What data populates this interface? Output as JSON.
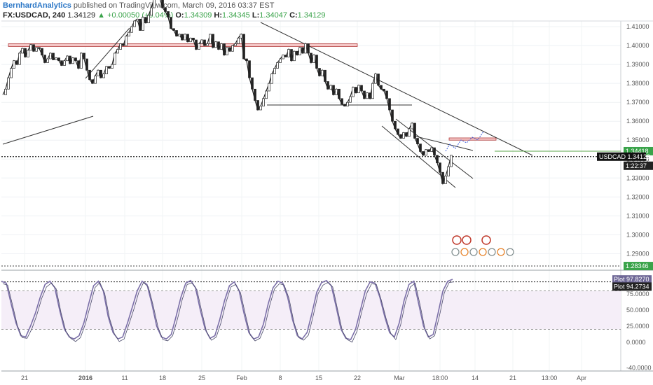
{
  "header": {
    "author": "BernhardAnalytics",
    "published": "published on TradingView.com, March 09, 2016 03:37 EST",
    "symbol": "FX:USDCAD, 240",
    "last": "1.34129",
    "change": "+0.00050 (+0.04%)",
    "o_label": "O:",
    "o_value": "1.34309",
    "h_label": "H:",
    "h_value": "1.34345",
    "l_label": "L:",
    "l_value": "1.34047",
    "c_label": "C:",
    "c_value": "1.34129"
  },
  "colors": {
    "up": "#3aa34a",
    "candle": "#222222",
    "resistance_zone": "#f4c6c6",
    "projection": "#3b5bdb",
    "oscillator": "#7b6fa8",
    "oscillator_band": "#f5eef8"
  },
  "chart_data": [
    {
      "type": "line",
      "name": "price",
      "x_ticks": [
        "21",
        "2016",
        "11",
        "18",
        "25",
        "Feb",
        "8",
        "15",
        "22",
        "Mar",
        "18:00",
        "14",
        "21",
        "13:00",
        "Apr"
      ],
      "y_ticks": [
        "1.41000",
        "1.40000",
        "1.39000",
        "1.38000",
        "1.37000",
        "1.36000",
        "1.35000",
        "1.34000",
        "1.33000",
        "1.32000",
        "1.31000",
        "1.30000",
        "1.29000"
      ],
      "ylim": [
        1.282,
        1.413
      ],
      "x": [
        0,
        2,
        4,
        6,
        8,
        10,
        12,
        14,
        16,
        18,
        20,
        22,
        24,
        26,
        28,
        30,
        32,
        34,
        36,
        38,
        40,
        42,
        44,
        46,
        48,
        50,
        52,
        54,
        56,
        58,
        60,
        62,
        64,
        66,
        68,
        70,
        72,
        74,
        76,
        78,
        80,
        82,
        84,
        86,
        88,
        90,
        92,
        94,
        96,
        98,
        100,
        102,
        104,
        106,
        108,
        110,
        112,
        114,
        116,
        118,
        120,
        122,
        124,
        126,
        128,
        130,
        132,
        134,
        136,
        138,
        140,
        142,
        144,
        146,
        148,
        150,
        152,
        154,
        156,
        158,
        160,
        162,
        164,
        166,
        168,
        170,
        172,
        174,
        176,
        178,
        180,
        182,
        184,
        186
      ],
      "y": [
        1.374,
        1.377,
        1.383,
        1.388,
        1.392,
        1.39,
        1.396,
        1.3985,
        1.394,
        1.3975,
        1.4005,
        1.397,
        1.399,
        1.3985,
        1.395,
        1.391,
        1.393,
        1.396,
        1.3925,
        1.3935,
        1.392,
        1.3895,
        1.392,
        1.3945,
        1.3905,
        1.3935,
        1.392,
        1.388,
        1.396,
        1.393,
        1.387,
        1.382,
        1.38,
        1.384,
        1.387,
        1.383,
        1.385,
        1.389,
        1.388,
        1.39,
        1.396,
        1.398,
        1.401,
        1.4,
        1.405,
        1.407,
        1.41,
        1.413,
        1.414,
        1.408,
        1.415,
        1.412,
        1.416,
        1.42,
        1.425,
        1.43,
        1.425,
        1.42,
        1.418,
        1.415,
        1.409,
        1.408,
        1.405,
        1.406,
        1.403,
        1.406,
        1.402,
        1.404,
        1.403,
        1.398,
        1.401,
        1.403,
        1.4,
        1.401,
        1.406,
        1.399,
        1.402,
        1.398,
        1.401,
        1.395,
        1.399,
        1.397,
        1.4,
        1.401,
        1.404,
        1.406,
        1.393,
        1.392,
        1.383,
        1.377,
        1.371,
        1.366,
        1.368,
        1.372
      ],
      "x2": [
        186,
        188,
        190,
        192,
        194,
        196,
        198,
        200,
        202,
        204,
        206,
        208,
        210,
        212,
        214,
        216,
        218,
        220,
        222,
        224,
        226,
        228,
        230,
        232,
        234,
        236,
        238,
        240,
        242,
        244,
        246,
        248,
        250,
        252,
        254,
        256,
        258,
        260,
        262,
        264,
        266,
        268,
        270,
        272,
        274,
        276,
        278,
        280,
        282,
        284,
        286,
        288,
        290,
        292,
        294,
        296,
        298,
        300,
        302,
        304,
        306,
        308,
        310,
        312,
        314,
        316,
        318,
        320
      ],
      "y2": [
        1.372,
        1.376,
        1.38,
        1.385,
        1.388,
        1.391,
        1.393,
        1.395,
        1.394,
        1.398,
        1.392,
        1.397,
        1.395,
        1.399,
        1.396,
        1.401,
        1.396,
        1.391,
        1.395,
        1.388,
        1.384,
        1.387,
        1.381,
        1.377,
        1.379,
        1.374,
        1.377,
        1.372,
        1.369,
        1.368,
        1.37,
        1.373,
        1.378,
        1.375,
        1.379,
        1.376,
        1.372,
        1.375,
        1.372,
        1.38,
        1.385,
        1.379,
        1.377,
        1.376,
        1.372,
        1.366,
        1.36,
        1.356,
        1.353,
        1.351,
        1.354,
        1.352,
        1.356,
        1.359,
        1.351,
        1.348,
        1.344,
        1.342,
        1.345,
        1.344,
        1.346,
        1.342,
        1.338,
        1.333,
        1.327,
        1.331,
        1.336,
        1.342
      ],
      "levels": [
        {
          "label": "USDCAD",
          "value": 1.34129,
          "text": "1.34129"
        },
        {
          "value": 1.34418,
          "text": "1.34418"
        },
        {
          "value": 1.28346,
          "text": "1.28346"
        }
      ],
      "countdown": "1:22:37",
      "grid": true
    },
    {
      "type": "line",
      "name": "oscillator",
      "y_ticks": [
        "75.0000",
        "50.0000",
        "25.0000",
        "0.0000",
        "-40.0000"
      ],
      "ylim": [
        -45,
        110
      ],
      "overbought": 80,
      "oversold": 20,
      "plot1_text": "97.8270",
      "plot2_text": "94.2734",
      "plot_label": "Plot",
      "values": [
        95,
        92,
        60,
        30,
        10,
        8,
        25,
        45,
        70,
        90,
        95,
        85,
        50,
        20,
        8,
        5,
        10,
        30,
        60,
        88,
        95,
        80,
        40,
        15,
        5,
        8,
        30,
        55,
        80,
        95,
        90,
        60,
        25,
        8,
        5,
        12,
        40,
        70,
        92,
        96,
        85,
        50,
        20,
        6,
        10,
        35,
        65,
        88,
        94,
        80,
        45,
        15,
        5,
        8,
        28,
        60,
        85,
        95,
        92,
        70,
        35,
        10,
        5,
        15,
        45,
        78,
        93,
        96,
        88,
        55,
        20,
        6,
        4,
        20,
        50,
        80,
        94,
        92,
        70,
        40,
        15,
        8,
        30,
        65,
        90,
        95,
        60,
        25,
        8,
        12,
        45,
        80,
        95,
        98
      ]
    }
  ],
  "annotations": {
    "resistance_top": {
      "from": "Dec 15",
      "to": "Feb 22",
      "price": 1.4005
    },
    "support_feb": {
      "price": 1.365
    },
    "resistance_target": {
      "price": 1.3505
    }
  }
}
